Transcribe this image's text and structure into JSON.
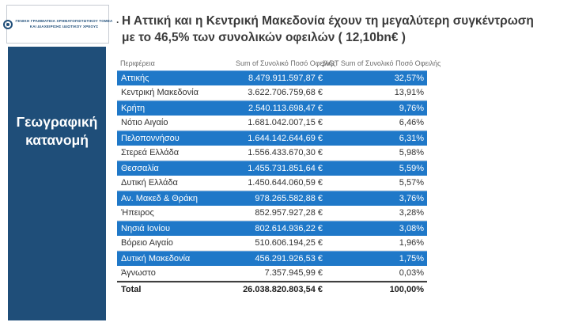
{
  "slide": {
    "logo": {
      "line1": "ΓΕΝΙΚΗ ΓΡΑΜΜΑΤΕΙΑ ΧΡΗΜΑΤΟΠΙΣΤΩΤΙΚΟΥ ΤΟΜΕΑ",
      "line2": "ΚΑΙ ΔΙΑΧΕΙΡΙΣΗΣ ΙΔΙΩΤΙΚΟΥ ΧΡΕΟΥΣ"
    },
    "sidebar": {
      "label": "Γεωγραφική κατανομή"
    },
    "title": {
      "bullet": "·",
      "line1": "Η Αττική και η Κεντρική Μακεδονία  έχουν τη μεγαλύτερη συγκέντρωση",
      "line2": "με το 46,5% των συνολικών οφειλών ( 12,10bn€ )"
    },
    "colors": {
      "sidebar_navy": "#1F4E79",
      "row_highlight_blue": "#1F78C8",
      "header_gray": "#6d6d6d",
      "title_text": "#3b3b3b"
    },
    "sort_icon": "▼"
  },
  "chart_data": {
    "type": "table",
    "title": "Η Αττική και η Κεντρική Μακεδονία έχουν τη μεγαλύτερη συγκέντρωση με το 46,5% των συνολικών οφειλών ( 12,10bn€ )",
    "columns": [
      "Περιφέρεια",
      "Sum of Συνολικό Ποσό Οφειλής",
      "%GT Sum of Συνολικό Ποσό Οφειλής"
    ],
    "sort": "descending by %GT Sum of Συνολικό Ποσό Οφειλής",
    "rows": [
      {
        "region": "Αττικής",
        "amount": "8.479.911.597,87 €",
        "pct": "32,57%",
        "highlighted": true
      },
      {
        "region": "Κεντρική Μακεδονία",
        "amount": "3.622.706.759,68 €",
        "pct": "13,91%",
        "highlighted": false
      },
      {
        "region": "Κρήτη",
        "amount": "2.540.113.698,47 €",
        "pct": "9,76%",
        "highlighted": true
      },
      {
        "region": "Νότιο Αιγαίο",
        "amount": "1.681.042.007,15 €",
        "pct": "6,46%",
        "highlighted": false
      },
      {
        "region": "Πελοποννήσου",
        "amount": "1.644.142.644,69 €",
        "pct": "6,31%",
        "highlighted": true
      },
      {
        "region": "Στερεά Ελλάδα",
        "amount": "1.556.433.670,30 €",
        "pct": "5,98%",
        "highlighted": false
      },
      {
        "region": "Θεσσαλία",
        "amount": "1.455.731.851,64 €",
        "pct": "5,59%",
        "highlighted": true
      },
      {
        "region": "Δυτική Ελλάδα",
        "amount": "1.450.644.060,59 €",
        "pct": "5,57%",
        "highlighted": false
      },
      {
        "region": "Αν. Μακεδ & Θράκη",
        "amount": "978.265.582,88 €",
        "pct": "3,76%",
        "highlighted": true
      },
      {
        "region": "Ήπειρος",
        "amount": "852.957.927,28 €",
        "pct": "3,28%",
        "highlighted": false
      },
      {
        "region": "Νησιά Ιονίου",
        "amount": "802.614.936,22 €",
        "pct": "3,08%",
        "highlighted": true
      },
      {
        "region": "Βόρειο Αιγαίο",
        "amount": "510.606.194,25 €",
        "pct": "1,96%",
        "highlighted": false
      },
      {
        "region": "Δυτική Μακεδονία",
        "amount": "456.291.926,53 €",
        "pct": "1,75%",
        "highlighted": true
      },
      {
        "region": "Άγνωστο",
        "amount": "7.357.945,99 €",
        "pct": "0,03%",
        "highlighted": false
      }
    ],
    "total": {
      "label": "Total",
      "amount": "26.038.820.803,54 €",
      "pct": "100,00%"
    }
  }
}
